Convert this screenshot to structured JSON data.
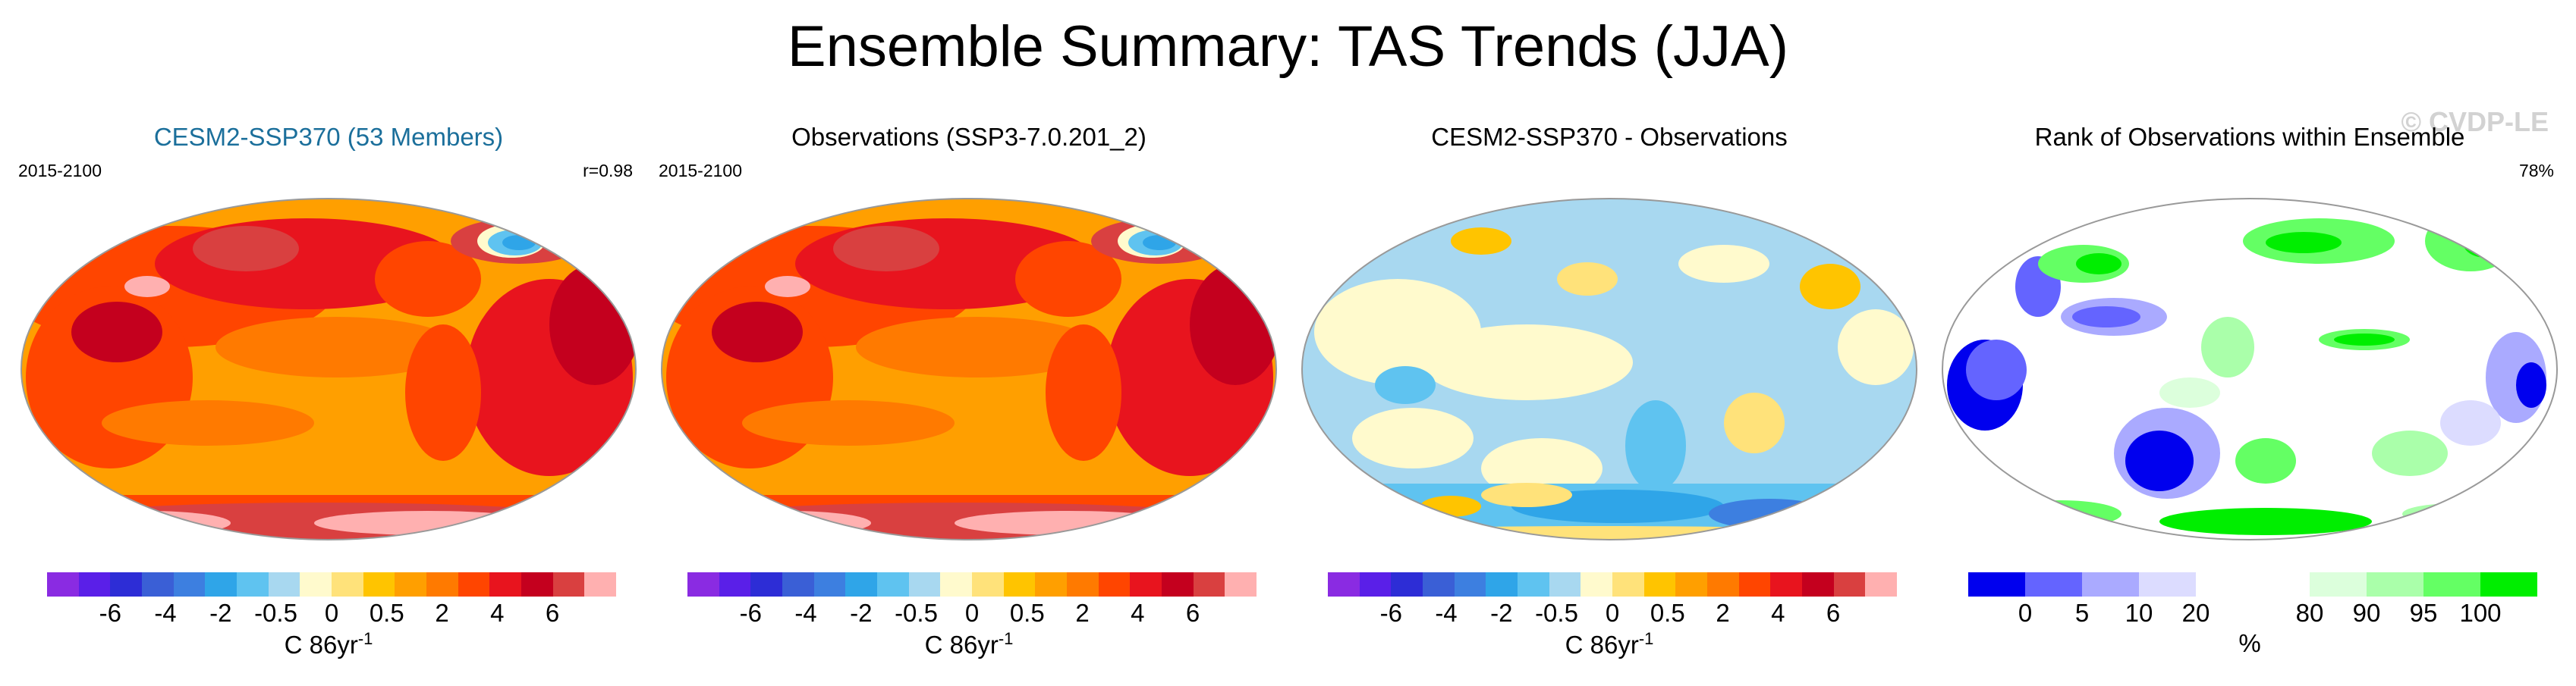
{
  "title": "Ensemble Summary: TAS Trends (JJA)",
  "watermark": "© CVDP-LE",
  "units_temp_main": "C 86yr",
  "units_temp_sup": "-1",
  "units_rank": "%",
  "temp_ticks": [
    "-6",
    "-4",
    "-2",
    "-0.5",
    "0",
    "0.5",
    "2",
    "4",
    "6"
  ],
  "rank_ticks": [
    "0",
    "5",
    "10",
    "20",
    "80",
    "90",
    "95",
    "100"
  ],
  "colors": {
    "temp_scale": [
      "#8a2be2",
      "#5a1fe8",
      "#2d2dd6",
      "#3a5fd6",
      "#3d7fe0",
      "#2fa5e8",
      "#5fc3f0",
      "#a8d8f0",
      "#fffacd",
      "#ffe27a",
      "#ffc400",
      "#ff9f00",
      "#ff7a00",
      "#ff4500",
      "#e8141e",
      "#c4001e",
      "#d94040",
      "#ffb0b0"
    ],
    "rank_scale": [
      "#0000ee",
      "#6464ff",
      "#aaaaff",
      "#dcdcff",
      "#ffffff",
      "#ffffff",
      "#dcffdc",
      "#aaffaa",
      "#64ff64",
      "#00ee00"
    ]
  },
  "panels": [
    {
      "title": "CESM2-SSP370 (53 Members)",
      "left": "2015-2100",
      "right": "r=0.98"
    },
    {
      "title": "Observations (SSP3-7.0.201_2)",
      "left": "2015-2100",
      "right": ""
    },
    {
      "title": "CESM2-SSP370 - Observations",
      "left": "",
      "right": ""
    },
    {
      "title": "Rank of Observations within Ensemble",
      "left": "",
      "right": "78%"
    }
  ]
}
